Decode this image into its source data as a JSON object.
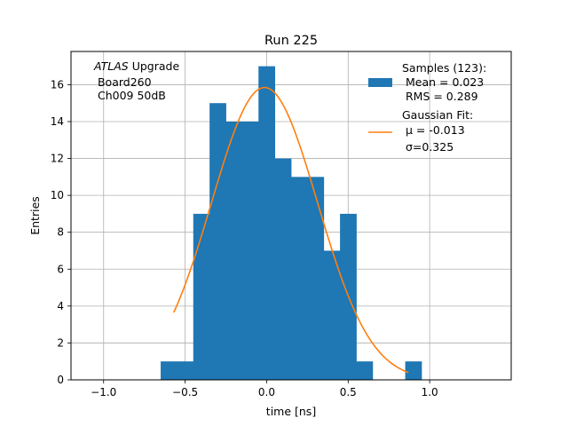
{
  "chart_data": {
    "type": "bar",
    "title": "Run 225",
    "xlabel": "time [ns]",
    "ylabel": "Entries",
    "xlim": [
      -1.2,
      1.5
    ],
    "ylim": [
      0,
      17.8
    ],
    "xticks": [
      -1.0,
      -0.5,
      0.0,
      0.5,
      1.0
    ],
    "xtick_labels": [
      "−1.0",
      "−0.5",
      "0.0",
      "0.5",
      "1.0"
    ],
    "yticks": [
      0,
      2,
      4,
      6,
      8,
      10,
      12,
      14,
      16
    ],
    "ytick_labels": [
      "0",
      "2",
      "4",
      "6",
      "8",
      "10",
      "12",
      "14",
      "16"
    ],
    "grid": true,
    "bin_width": 0.1,
    "bins": [
      {
        "x0": -0.65,
        "value": 1
      },
      {
        "x0": -0.55,
        "value": 1
      },
      {
        "x0": -0.45,
        "value": 9
      },
      {
        "x0": -0.35,
        "value": 15
      },
      {
        "x0": -0.25,
        "value": 14
      },
      {
        "x0": -0.15,
        "value": 14
      },
      {
        "x0": -0.05,
        "value": 17
      },
      {
        "x0": 0.05,
        "value": 12
      },
      {
        "x0": 0.15,
        "value": 11
      },
      {
        "x0": 0.25,
        "value": 11
      },
      {
        "x0": 0.35,
        "value": 7
      },
      {
        "x0": 0.45,
        "value": 9
      },
      {
        "x0": 0.55,
        "value": 1
      },
      {
        "x0": 0.65,
        "value": 0
      },
      {
        "x0": 0.75,
        "value": 0
      },
      {
        "x0": 0.85,
        "value": 1
      }
    ],
    "fit": {
      "type": "gaussian",
      "amplitude": 15.85,
      "mu": -0.013,
      "sigma": 0.325,
      "x_range": [
        -0.57,
        0.87
      ]
    },
    "colors": {
      "bars": "#1f77b4",
      "fit": "#ff7f0e",
      "grid": "#b0b0b0"
    },
    "legend": {
      "placement": "top-right",
      "samples_lines": [
        "Samples (123):",
        " Mean = 0.023",
        " RMS = 0.289"
      ],
      "fit_lines": [
        "Gaussian Fit:",
        " μ = -0.013",
        " σ=0.325"
      ]
    },
    "annotation": {
      "placement": "top-left",
      "italic": "ATLAS",
      "line1_rest": " Upgrade",
      "line2": " Board260",
      "line3": " Ch009 50dB"
    }
  }
}
